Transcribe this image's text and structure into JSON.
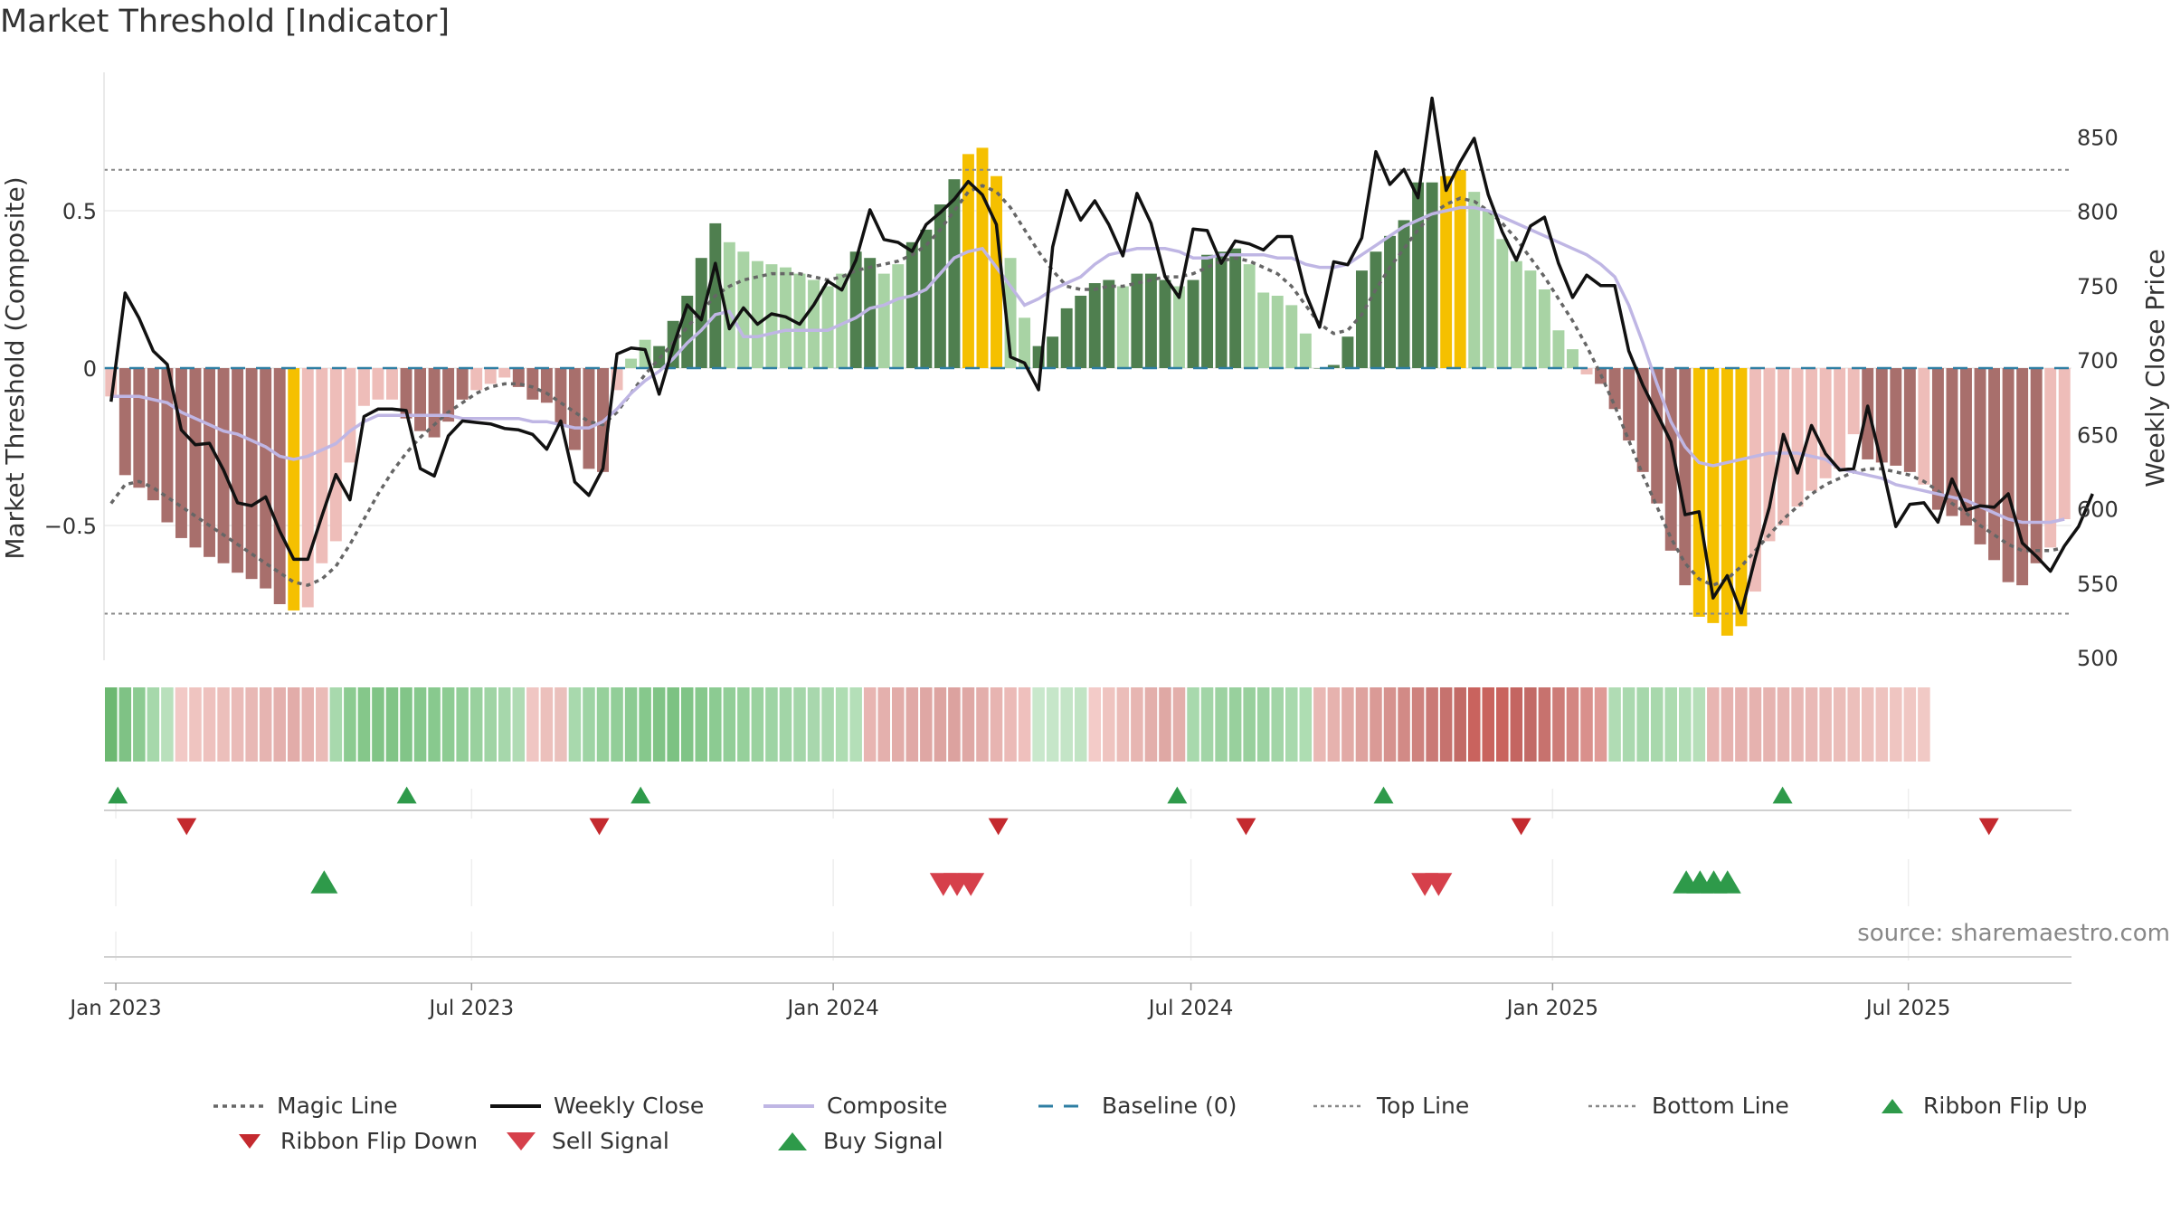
{
  "title": "Market Threshold [Indicator]",
  "source": "source: sharemaestro.com",
  "colors": {
    "up_strong": "#6b966b",
    "up_mid": "#4f7f4f",
    "up_light": "#a8d3a4",
    "down_strong": "#a86f6c",
    "down_light": "#eebdb9",
    "extreme": "#f5c000",
    "close": "#111111",
    "magic": "#666666",
    "composite": "#bfb6e4",
    "baseline": "#2e7ea3",
    "ribbon_green": "#7fc285",
    "ribbon_red": "#c9635e",
    "buy": "#2e9a4a",
    "sell": "#d6404b"
  },
  "chart_data": {
    "type": "bar",
    "title": "Market Threshold [Indicator]",
    "ylabel": "Market Threshold (Composite)",
    "y2label": "Weekly Close Price",
    "ylim": [
      -0.93,
      0.93
    ],
    "y2lim": [
      500,
      885
    ],
    "yticks": [
      -0.5,
      0,
      0.5
    ],
    "ytick_labels": [
      "−0.5",
      "0",
      "0.5"
    ],
    "y2ticks": [
      500,
      550,
      600,
      650,
      700,
      750,
      800,
      850
    ],
    "top_line": 0.63,
    "bottom_line": -0.78,
    "x_start": "2022-12-26",
    "x_end": "2025-09-22",
    "xticks": [
      {
        "date": "2023-01-01",
        "label": "Jan 2023"
      },
      {
        "date": "2023-07-01",
        "label": "Jul 2023"
      },
      {
        "date": "2024-01-01",
        "label": "Jan 2024"
      },
      {
        "date": "2024-07-01",
        "label": "Jul 2024"
      },
      {
        "date": "2025-01-01",
        "label": "Jan 2025"
      },
      {
        "date": "2025-07-01",
        "label": "Jul 2025"
      }
    ],
    "composite_bars": [
      -0.09,
      -0.34,
      -0.38,
      -0.42,
      -0.49,
      -0.54,
      -0.57,
      -0.6,
      -0.62,
      -0.65,
      -0.67,
      -0.7,
      -0.75,
      -0.77,
      -0.76,
      -0.62,
      -0.55,
      -0.3,
      -0.12,
      -0.1,
      -0.1,
      -0.16,
      -0.2,
      -0.22,
      -0.17,
      -0.1,
      -0.07,
      -0.05,
      -0.03,
      -0.06,
      -0.1,
      -0.11,
      -0.18,
      -0.26,
      -0.32,
      -0.33,
      -0.07,
      0.03,
      0.09,
      0.07,
      0.15,
      0.23,
      0.35,
      0.46,
      0.4,
      0.37,
      0.34,
      0.33,
      0.32,
      0.3,
      0.28,
      0.26,
      0.3,
      0.37,
      0.35,
      0.3,
      0.33,
      0.4,
      0.44,
      0.52,
      0.6,
      0.68,
      0.7,
      0.61,
      0.35,
      0.16,
      0.07,
      0.1,
      0.19,
      0.23,
      0.27,
      0.28,
      0.26,
      0.3,
      0.3,
      0.28,
      0.26,
      0.28,
      0.36,
      0.37,
      0.38,
      0.33,
      0.24,
      0.23,
      0.2,
      0.11,
      0,
      0.01,
      0.1,
      0.31,
      0.37,
      0.42,
      0.47,
      0.59,
      0.59,
      0.61,
      0.63,
      0.56,
      0.5,
      0.41,
      0.34,
      0.31,
      0.25,
      0.12,
      0.06,
      -0.02,
      -0.05,
      -0.13,
      -0.23,
      -0.33,
      -0.43,
      -0.58,
      -0.69,
      -0.79,
      -0.81,
      -0.85,
      -0.82,
      -0.71,
      -0.55,
      -0.5,
      -0.44,
      -0.39,
      -0.35,
      -0.32,
      -0.21,
      -0.29,
      -0.3,
      -0.31,
      -0.33,
      -0.37,
      -0.45,
      -0.47,
      -0.5,
      -0.56,
      -0.61,
      -0.68,
      -0.69,
      -0.62,
      -0.57,
      -0.48
    ],
    "weekly_close": [
      672,
      745,
      728,
      706,
      697,
      653,
      643,
      644,
      626,
      604,
      602,
      608,
      585,
      566,
      566,
      595,
      623,
      606,
      662,
      667,
      667,
      666,
      627,
      622,
      649,
      659,
      658,
      657,
      654,
      653,
      650,
      640,
      659,
      618,
      609,
      627,
      704,
      708,
      707,
      677,
      709,
      737,
      727,
      765,
      721,
      735,
      724,
      731,
      729,
      724,
      737,
      753,
      747,
      767,
      801,
      781,
      779,
      773,
      791,
      799,
      808,
      820,
      811,
      791,
      702,
      698,
      680,
      776,
      814,
      794,
      807,
      791,
      770,
      812,
      792,
      756,
      742,
      788,
      787,
      765,
      780,
      778,
      774,
      783,
      783,
      745,
      722,
      766,
      764,
      782,
      840,
      818,
      828,
      809,
      876,
      814,
      833,
      849,
      811,
      786,
      767,
      790,
      796,
      765,
      742,
      757,
      750,
      750,
      706,
      683,
      664,
      645,
      596,
      598,
      540,
      555,
      530,
      567,
      601,
      650,
      624,
      656,
      637,
      626,
      627,
      669,
      630,
      588,
      603,
      604,
      591,
      620,
      599,
      602,
      601,
      610,
      577,
      568,
      558,
      575,
      588,
      610
    ],
    "magic_line": [
      -0.43,
      -0.37,
      -0.36,
      -0.38,
      -0.41,
      -0.44,
      -0.47,
      -0.5,
      -0.53,
      -0.56,
      -0.59,
      -0.62,
      -0.65,
      -0.68,
      -0.69,
      -0.67,
      -0.63,
      -0.56,
      -0.48,
      -0.4,
      -0.33,
      -0.27,
      -0.22,
      -0.18,
      -0.14,
      -0.11,
      -0.08,
      -0.06,
      -0.05,
      -0.05,
      -0.06,
      -0.08,
      -0.11,
      -0.14,
      -0.17,
      -0.18,
      -0.14,
      -0.08,
      -0.02,
      0.03,
      0.08,
      0.13,
      0.18,
      0.23,
      0.26,
      0.28,
      0.29,
      0.3,
      0.3,
      0.3,
      0.29,
      0.28,
      0.29,
      0.31,
      0.32,
      0.33,
      0.34,
      0.36,
      0.39,
      0.44,
      0.5,
      0.56,
      0.58,
      0.56,
      0.51,
      0.44,
      0.37,
      0.31,
      0.26,
      0.25,
      0.25,
      0.26,
      0.26,
      0.27,
      0.28,
      0.29,
      0.29,
      0.3,
      0.32,
      0.34,
      0.35,
      0.34,
      0.32,
      0.3,
      0.26,
      0.2,
      0.14,
      0.11,
      0.12,
      0.17,
      0.25,
      0.32,
      0.38,
      0.44,
      0.49,
      0.52,
      0.54,
      0.53,
      0.5,
      0.46,
      0.41,
      0.35,
      0.29,
      0.22,
      0.15,
      0.07,
      -0.02,
      -0.12,
      -0.23,
      -0.34,
      -0.44,
      -0.54,
      -0.62,
      -0.67,
      -0.69,
      -0.67,
      -0.63,
      -0.58,
      -0.53,
      -0.48,
      -0.44,
      -0.4,
      -0.37,
      -0.35,
      -0.33,
      -0.32,
      -0.32,
      -0.33,
      -0.34,
      -0.36,
      -0.39,
      -0.43,
      -0.46,
      -0.5,
      -0.53,
      -0.56,
      -0.58,
      -0.58,
      -0.58,
      -0.57
    ],
    "composite_line": [
      -0.09,
      -0.09,
      -0.09,
      -0.1,
      -0.11,
      -0.14,
      -0.16,
      -0.18,
      -0.2,
      -0.21,
      -0.23,
      -0.25,
      -0.28,
      -0.29,
      -0.28,
      -0.26,
      -0.24,
      -0.2,
      -0.17,
      -0.15,
      -0.15,
      -0.15,
      -0.15,
      -0.15,
      -0.15,
      -0.16,
      -0.16,
      -0.16,
      -0.16,
      -0.16,
      -0.17,
      -0.17,
      -0.18,
      -0.19,
      -0.19,
      -0.17,
      -0.13,
      -0.08,
      -0.04,
      -0.01,
      0.03,
      0.08,
      0.12,
      0.17,
      0.18,
      0.1,
      0.1,
      0.11,
      0.12,
      0.12,
      0.12,
      0.12,
      0.14,
      0.16,
      0.19,
      0.2,
      0.22,
      0.23,
      0.25,
      0.3,
      0.35,
      0.37,
      0.38,
      0.32,
      0.26,
      0.2,
      0.22,
      0.25,
      0.27,
      0.29,
      0.33,
      0.36,
      0.37,
      0.38,
      0.38,
      0.38,
      0.37,
      0.35,
      0.35,
      0.36,
      0.36,
      0.36,
      0.36,
      0.35,
      0.35,
      0.33,
      0.32,
      0.32,
      0.33,
      0.36,
      0.39,
      0.42,
      0.45,
      0.47,
      0.49,
      0.5,
      0.51,
      0.51,
      0.5,
      0.48,
      0.46,
      0.44,
      0.42,
      0.4,
      0.38,
      0.36,
      0.33,
      0.29,
      0.2,
      0.08,
      -0.05,
      -0.17,
      -0.25,
      -0.3,
      -0.31,
      -0.3,
      -0.29,
      -0.28,
      -0.27,
      -0.27,
      -0.27,
      -0.28,
      -0.29,
      -0.32,
      -0.33,
      -0.34,
      -0.35,
      -0.37,
      -0.38,
      -0.39,
      -0.4,
      -0.41,
      -0.42,
      -0.44,
      -0.46,
      -0.48,
      -0.49,
      -0.49,
      -0.49,
      -0.48
    ],
    "bar_colors": [
      "dl",
      "ds",
      "ds",
      "ds",
      "ds",
      "ds",
      "ds",
      "ds",
      "ds",
      "ds",
      "ds",
      "ds",
      "ds",
      "ex",
      "dl",
      "dl",
      "dl",
      "dl",
      "dl",
      "dl",
      "dl",
      "ds",
      "ds",
      "ds",
      "ds",
      "ds",
      "dl",
      "dl",
      "dl",
      "ds",
      "ds",
      "ds",
      "ds",
      "ds",
      "ds",
      "ds",
      "dl",
      "ul",
      "ul",
      "um",
      "um",
      "um",
      "um",
      "um",
      "ul",
      "ul",
      "ul",
      "ul",
      "ul",
      "ul",
      "ul",
      "ul",
      "ul",
      "um",
      "um",
      "ul",
      "ul",
      "um",
      "um",
      "um",
      "um",
      "ex",
      "ex",
      "ex",
      "ul",
      "ul",
      "um",
      "um",
      "um",
      "um",
      "um",
      "um",
      "ul",
      "um",
      "um",
      "um",
      "ul",
      "um",
      "um",
      "um",
      "um",
      "ul",
      "ul",
      "ul",
      "ul",
      "ul",
      "um",
      "um",
      "um",
      "um",
      "um",
      "um",
      "um",
      "um",
      "um",
      "ex",
      "ex",
      "ul",
      "ul",
      "ul",
      "ul",
      "ul",
      "ul",
      "ul",
      "ul",
      "dl",
      "ds",
      "ds",
      "ds",
      "ds",
      "ds",
      "ds",
      "ds",
      "ex",
      "ex",
      "ex",
      "ex",
      "dl",
      "dl",
      "dl",
      "dl",
      "dl",
      "dl",
      "dl",
      "dl",
      "ds",
      "ds",
      "ds",
      "ds",
      "dl",
      "ds",
      "ds",
      "ds",
      "ds",
      "ds",
      "ds",
      "ds",
      "ds",
      "dl",
      "dl",
      "dl",
      "dl"
    ],
    "ribbon": [
      "#6cb871",
      "#7fc285",
      "#8ccb92",
      "#a6d8ab",
      "#b9e0bc",
      "#f2c9c6",
      "#efc4c0",
      "#eec1be",
      "#ecbfbb",
      "#eabbb8",
      "#e8b8b5",
      "#e6b4b1",
      "#e4b0ad",
      "#e2aca9",
      "#e6b3b0",
      "#eabbb7",
      "#a8d9ad",
      "#8ccb91",
      "#85c78a",
      "#80c486",
      "#80c486",
      "#82c588",
      "#86c88c",
      "#88c98e",
      "#8dcc93",
      "#92ce98",
      "#99d19e",
      "#a0d4a5",
      "#a6d7ab",
      "#b0dbb4",
      "#f0c6c3",
      "#ecc0bc",
      "#eac0bc",
      "#a8d9ad",
      "#9ed4a4",
      "#96d09b",
      "#92ce98",
      "#8ccb92",
      "#86c88c",
      "#80c486",
      "#7cc282",
      "#80c486",
      "#86c88c",
      "#8ccb92",
      "#92ce98",
      "#96d09b",
      "#9ad29f",
      "#9ed4a4",
      "#a2d5a7",
      "#a4d6a9",
      "#a8d7ad",
      "#aad9af",
      "#aeddb2",
      "#b4dfb8",
      "#e8b5b2",
      "#e4b0ad",
      "#e2aca9",
      "#e0a9a6",
      "#dfa7a4",
      "#dda4a1",
      "#dca29f",
      "#dfa8a5",
      "#e3aeab",
      "#e7b4b1",
      "#ebbab7",
      "#efc0bd",
      "#c9e8cc",
      "#c6e6c9",
      "#c4e5c7",
      "#c1e4c4",
      "#f3cbc8",
      "#efc4c0",
      "#ebbdb9",
      "#e7b6b2",
      "#e3afab",
      "#dfa8a4",
      "#e3afab",
      "#a8d9ad",
      "#a2d5a7",
      "#9cd2a1",
      "#98d09d",
      "#98d09d",
      "#9cd2a1",
      "#a2d5a7",
      "#a8d9ad",
      "#aeddb2",
      "#e9b8b4",
      "#e6b2ae",
      "#e2aaa6",
      "#dea29e",
      "#da9a96",
      "#d6928e",
      "#d28a86",
      "#ce827e",
      "#ca7a76",
      "#c6726e",
      "#c26a66",
      "#c9635e",
      "#c9635e",
      "#c9635e",
      "#c46561",
      "#c26a66",
      "#c7726e",
      "#cd7c78",
      "#d38682",
      "#d9908c",
      "#df9a96",
      "#b0dcb4",
      "#aad9af",
      "#a6d7ab",
      "#a8d8ac",
      "#acdbb0",
      "#b2ddb6",
      "#b6dfb9",
      "#e8b5b2",
      "#e6b2af",
      "#e6b2af",
      "#e6b2af",
      "#e6b3b0",
      "#e7b5b2",
      "#e8b7b4",
      "#e9b9b6",
      "#eabbb8",
      "#ebbdb9",
      "#ecbfbb",
      "#edc1bd",
      "#eec3bf",
      "#efc5c1",
      "#f0c7c3",
      "#f1c9c5"
    ],
    "ribbon_flip_up": [
      "2023-01-02",
      "2023-05-29",
      "2023-09-25",
      "2024-06-24",
      "2024-10-07",
      "2025-04-28"
    ],
    "ribbon_flip_down": [
      "2023-02-06",
      "2023-09-04",
      "2024-03-25",
      "2024-07-29",
      "2024-12-16",
      "2025-08-11"
    ],
    "buy_signal": [
      "2023-04-17",
      "2025-03-10",
      "2025-03-17",
      "2025-03-24",
      "2025-03-31"
    ],
    "sell_signal": [
      "2024-02-26",
      "2024-03-04",
      "2024-03-11",
      "2024-10-28",
      "2024-11-04"
    ],
    "legend": [
      {
        "key": "magic",
        "label": "Magic Line"
      },
      {
        "key": "close",
        "label": "Weekly Close"
      },
      {
        "key": "composite",
        "label": "Composite"
      },
      {
        "key": "baseline",
        "label": "Baseline (0)"
      },
      {
        "key": "top",
        "label": "Top Line"
      },
      {
        "key": "bottom",
        "label": "Bottom Line"
      },
      {
        "key": "flip_up",
        "label": "Ribbon Flip Up"
      },
      {
        "key": "flip_down",
        "label": "Ribbon Flip Down"
      },
      {
        "key": "sell",
        "label": "Sell Signal"
      },
      {
        "key": "buy",
        "label": "Buy Signal"
      }
    ]
  }
}
